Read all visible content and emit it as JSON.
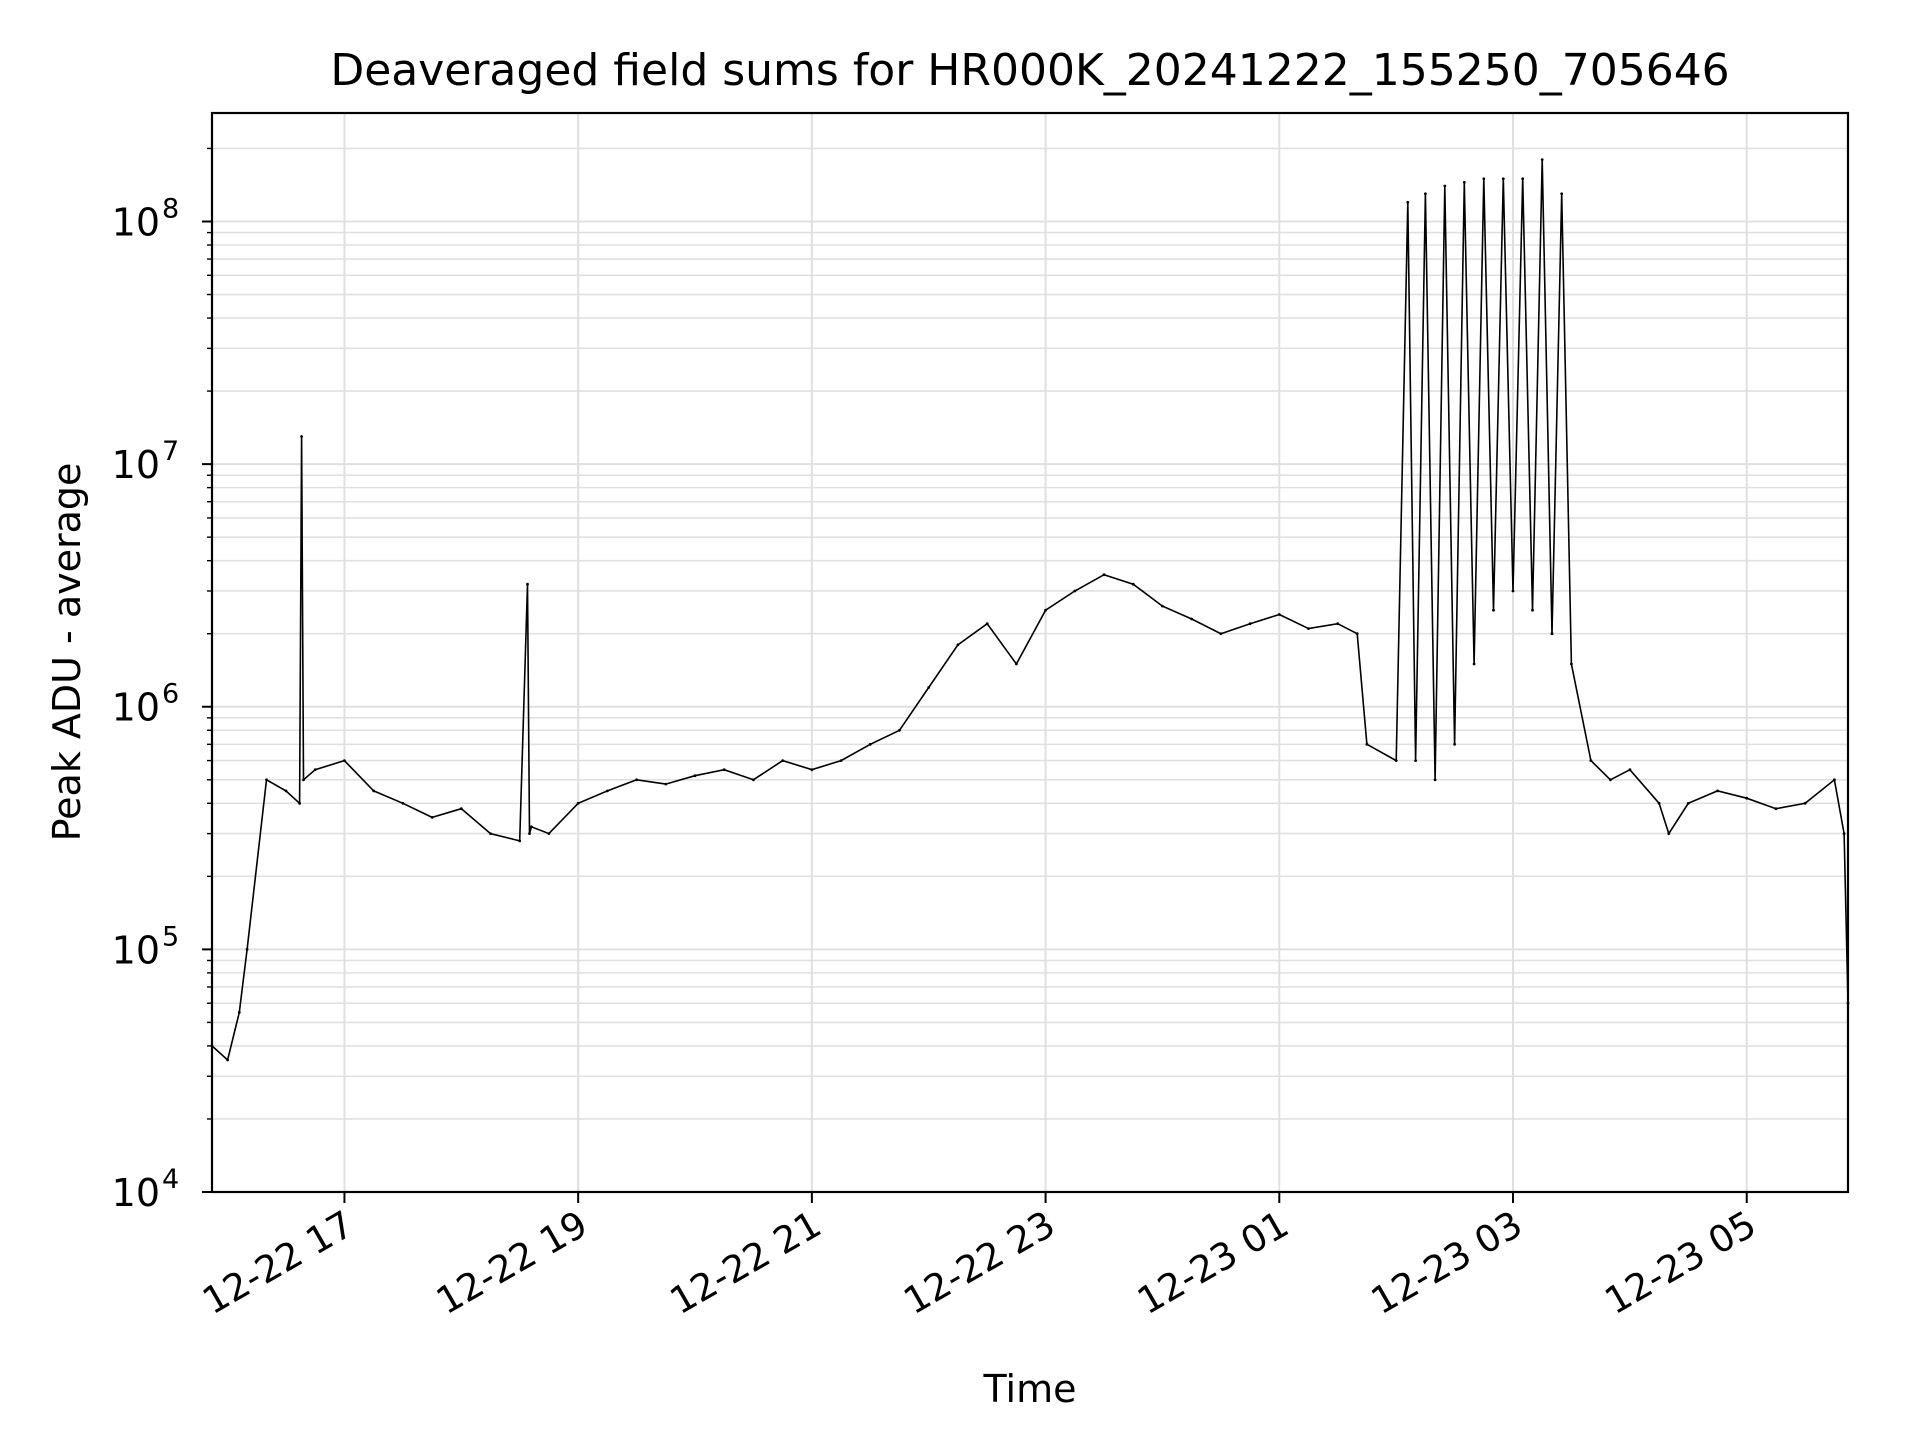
{
  "chart_data": {
    "type": "line",
    "title": "Deaveraged field sums for HR000K_20241222_155250_705646",
    "xlabel": "Time",
    "ylabel": "Peak ADU - average",
    "y_scale": "log",
    "ylim": [
      10000,
      280000000
    ],
    "xlim": [
      "2024-12-22 15:52",
      "2024-12-23 05:52"
    ],
    "grid": true,
    "line_color": "#000000",
    "grid_color": "#e0e0e0",
    "x_tick_labels": [
      "12-22 17",
      "12-22 19",
      "12-22 21",
      "12-22 23",
      "12-23 01",
      "12-23 03",
      "12-23 05"
    ],
    "x_ticks": [
      "2024-12-22 17:00",
      "2024-12-22 19:00",
      "2024-12-22 21:00",
      "2024-12-22 23:00",
      "2024-12-23 01:00",
      "2024-12-23 03:00",
      "2024-12-23 05:00"
    ],
    "y_ticks": [
      {
        "value": 10000,
        "base": "10",
        "exp": "4"
      },
      {
        "value": 100000,
        "base": "10",
        "exp": "5"
      },
      {
        "value": 1000000,
        "base": "10",
        "exp": "6"
      },
      {
        "value": 10000000,
        "base": "10",
        "exp": "7"
      },
      {
        "value": 100000000,
        "base": "10",
        "exp": "8"
      }
    ],
    "x": [
      "2024-12-22 15:52",
      "2024-12-22 16:00",
      "2024-12-22 16:06",
      "2024-12-22 16:10",
      "2024-12-22 16:20",
      "2024-12-22 16:30",
      "2024-12-22 16:37",
      "2024-12-22 16:38",
      "2024-12-22 16:39",
      "2024-12-22 16:45",
      "2024-12-22 17:00",
      "2024-12-22 17:15",
      "2024-12-22 17:30",
      "2024-12-22 17:45",
      "2024-12-22 18:00",
      "2024-12-22 18:15",
      "2024-12-22 18:30",
      "2024-12-22 18:34",
      "2024-12-22 18:35",
      "2024-12-22 18:36",
      "2024-12-22 18:45",
      "2024-12-22 19:00",
      "2024-12-22 19:15",
      "2024-12-22 19:30",
      "2024-12-22 19:45",
      "2024-12-22 20:00",
      "2024-12-22 20:15",
      "2024-12-22 20:30",
      "2024-12-22 20:45",
      "2024-12-22 21:00",
      "2024-12-22 21:15",
      "2024-12-22 21:30",
      "2024-12-22 21:45",
      "2024-12-22 22:00",
      "2024-12-22 22:15",
      "2024-12-22 22:30",
      "2024-12-22 22:45",
      "2024-12-22 23:00",
      "2024-12-22 23:15",
      "2024-12-22 23:30",
      "2024-12-22 23:45",
      "2024-12-23 00:00",
      "2024-12-23 00:15",
      "2024-12-23 00:30",
      "2024-12-23 00:45",
      "2024-12-23 01:00",
      "2024-12-23 01:15",
      "2024-12-23 01:30",
      "2024-12-23 01:40",
      "2024-12-23 01:45",
      "2024-12-23 02:00",
      "2024-12-23 02:06",
      "2024-12-23 02:10",
      "2024-12-23 02:15",
      "2024-12-23 02:20",
      "2024-12-23 02:25",
      "2024-12-23 02:30",
      "2024-12-23 02:35",
      "2024-12-23 02:40",
      "2024-12-23 02:45",
      "2024-12-23 02:50",
      "2024-12-23 02:55",
      "2024-12-23 03:00",
      "2024-12-23 03:05",
      "2024-12-23 03:10",
      "2024-12-23 03:15",
      "2024-12-23 03:20",
      "2024-12-23 03:25",
      "2024-12-23 03:30",
      "2024-12-23 03:40",
      "2024-12-23 03:50",
      "2024-12-23 04:00",
      "2024-12-23 04:15",
      "2024-12-23 04:20",
      "2024-12-23 04:30",
      "2024-12-23 04:45",
      "2024-12-23 05:00",
      "2024-12-23 05:15",
      "2024-12-23 05:30",
      "2024-12-23 05:45",
      "2024-12-23 05:50",
      "2024-12-23 05:52"
    ],
    "values": [
      40000,
      35000,
      55000,
      100000,
      500000,
      450000,
      400000,
      13000000,
      500000,
      550000,
      600000,
      450000,
      400000,
      350000,
      380000,
      300000,
      280000,
      3200000,
      300000,
      320000,
      300000,
      400000,
      450000,
      500000,
      480000,
      520000,
      550000,
      500000,
      600000,
      550000,
      600000,
      700000,
      800000,
      1200000,
      1800000,
      2200000,
      1500000,
      2500000,
      3000000,
      3500000,
      3200000,
      2600000,
      2300000,
      2000000,
      2200000,
      2400000,
      2100000,
      2200000,
      2000000,
      700000,
      600000,
      120000000,
      600000,
      130000000,
      500000,
      140000000,
      700000,
      145000000,
      1500000,
      150000000,
      2500000,
      150000000,
      3000000,
      150000000,
      2500000,
      180000000,
      2000000,
      130000000,
      1500000,
      600000,
      500000,
      550000,
      400000,
      300000,
      400000,
      450000,
      420000,
      380000,
      400000,
      500000,
      300000,
      60000
    ]
  }
}
